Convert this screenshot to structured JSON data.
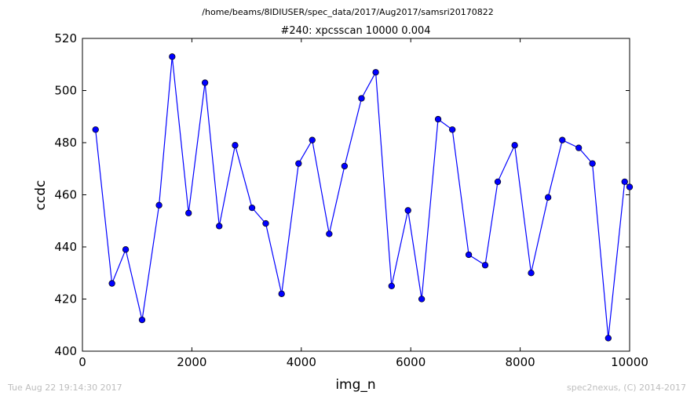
{
  "chart_data": {
    "type": "line",
    "suptitle": "/home/beams/8IDIUSER/spec_data/2017/Aug2017/samsri20170822",
    "title": "#240: xpcsscan 10000 0.004",
    "xlabel": "img_n",
    "ylabel": "ccdc",
    "xlim": [
      0,
      10000
    ],
    "ylim": [
      400,
      520
    ],
    "xticks": [
      0,
      2000,
      4000,
      6000,
      8000,
      10000
    ],
    "yticks": [
      400,
      420,
      440,
      460,
      480,
      500,
      520
    ],
    "grid": false,
    "series": [
      {
        "color": "#0000ff",
        "marker": "circle",
        "x": [
          240,
          540,
          790,
          1090,
          1400,
          1640,
          1940,
          2240,
          2500,
          2790,
          3100,
          3350,
          3640,
          3950,
          4200,
          4510,
          4790,
          5100,
          5360,
          5650,
          5950,
          6200,
          6500,
          6760,
          7060,
          7360,
          7590,
          7900,
          8200,
          8510,
          8770,
          9070,
          9320,
          9610,
          9910,
          10000
        ],
        "y": [
          485,
          426,
          439,
          412,
          456,
          513,
          453,
          503,
          448,
          479,
          455,
          449,
          422,
          472,
          481,
          445,
          471,
          497,
          507,
          425,
          454,
          420,
          489,
          485,
          437,
          433,
          465,
          479,
          430,
          459,
          481,
          478,
          472,
          405,
          465,
          463
        ]
      }
    ]
  },
  "footer": {
    "timestamp": "Tue Aug 22 19:14:30 2017",
    "credit": "spec2nexus, (C) 2014-2017"
  }
}
